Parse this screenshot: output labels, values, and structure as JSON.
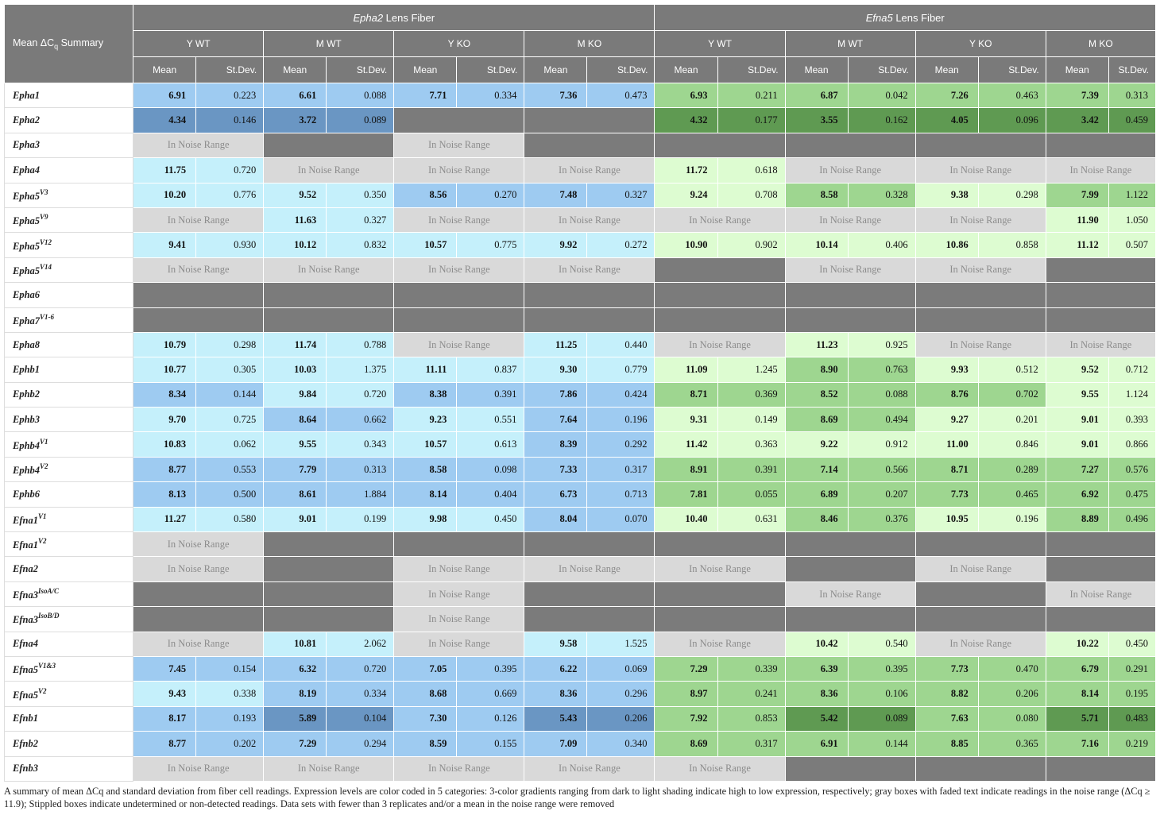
{
  "corner_label": "Mean ΔC",
  "corner_sub": "q",
  "corner_tail": " Summary",
  "groups": [
    {
      "gene": "Epha2",
      "label": " Lens Fiber",
      "theme": "blue"
    },
    {
      "gene": "Efna5",
      "label": " Lens Fiber",
      "theme": "green"
    }
  ],
  "conditions": [
    "Y WT",
    "M WT",
    "Y KO",
    "M KO"
  ],
  "stat_headers": {
    "mean": "Mean",
    "stdev": "St.Dev."
  },
  "noise_text": "In Noise Range",
  "rows": [
    {
      "gene": "Epha1",
      "sup": "",
      "cells": [
        [
          2,
          "6.91",
          "0.223"
        ],
        [
          2,
          "6.61",
          "0.088"
        ],
        [
          2,
          "7.71",
          "0.334"
        ],
        [
          2,
          "7.36",
          "0.473"
        ],
        [
          2,
          "6.93",
          "0.211"
        ],
        [
          2,
          "6.87",
          "0.042"
        ],
        [
          2,
          "7.26",
          "0.463"
        ],
        [
          2,
          "7.39",
          "0.313"
        ]
      ]
    },
    {
      "gene": "Epha2",
      "sup": "",
      "cells": [
        [
          3,
          "4.34",
          "0.146"
        ],
        [
          3,
          "3.72",
          "0.089"
        ],
        [
          "nd"
        ],
        [
          "nd"
        ],
        [
          3,
          "4.32",
          "0.177"
        ],
        [
          3,
          "3.55",
          "0.162"
        ],
        [
          3,
          "4.05",
          "0.096"
        ],
        [
          3,
          "3.42",
          "0.459"
        ]
      ]
    },
    {
      "gene": "Epha3",
      "sup": "",
      "cells": [
        [
          "noise"
        ],
        [
          "nd"
        ],
        [
          "noise"
        ],
        [
          "nd"
        ],
        [
          "nd"
        ],
        [
          "nd"
        ],
        [
          "nd"
        ],
        [
          "nd"
        ]
      ]
    },
    {
      "gene": "Epha4",
      "sup": "",
      "cells": [
        [
          1,
          "11.75",
          "0.720"
        ],
        [
          "noise"
        ],
        [
          "noise"
        ],
        [
          "noise"
        ],
        [
          1,
          "11.72",
          "0.618"
        ],
        [
          "noise"
        ],
        [
          "noise"
        ],
        [
          "noise"
        ]
      ]
    },
    {
      "gene": "Epha5",
      "sup": "V3",
      "cells": [
        [
          1,
          "10.20",
          "0.776"
        ],
        [
          1,
          "9.52",
          "0.350"
        ],
        [
          2,
          "8.56",
          "0.270"
        ],
        [
          2,
          "7.48",
          "0.327"
        ],
        [
          1,
          "9.24",
          "0.708"
        ],
        [
          2,
          "8.58",
          "0.328"
        ],
        [
          1,
          "9.38",
          "0.298"
        ],
        [
          2,
          "7.99",
          "1.122"
        ]
      ]
    },
    {
      "gene": "Epha5",
      "sup": "V9",
      "cells": [
        [
          "noise"
        ],
        [
          1,
          "11.63",
          "0.327"
        ],
        [
          "noise"
        ],
        [
          "noise"
        ],
        [
          "noise"
        ],
        [
          "noise"
        ],
        [
          "noise"
        ],
        [
          1,
          "11.90",
          "1.050"
        ]
      ]
    },
    {
      "gene": "Epha5",
      "sup": "V12",
      "cells": [
        [
          1,
          "9.41",
          "0.930"
        ],
        [
          1,
          "10.12",
          "0.832"
        ],
        [
          1,
          "10.57",
          "0.775"
        ],
        [
          1,
          "9.92",
          "0.272"
        ],
        [
          1,
          "10.90",
          "0.902"
        ],
        [
          1,
          "10.14",
          "0.406"
        ],
        [
          1,
          "10.86",
          "0.858"
        ],
        [
          1,
          "11.12",
          "0.507"
        ]
      ]
    },
    {
      "gene": "Epha5",
      "sup": "V14",
      "cells": [
        [
          "noise"
        ],
        [
          "noise"
        ],
        [
          "noise"
        ],
        [
          "noise"
        ],
        [
          "nd"
        ],
        [
          "noise"
        ],
        [
          "noise"
        ],
        [
          "nd"
        ]
      ]
    },
    {
      "gene": "Epha6",
      "sup": "",
      "cells": [
        [
          "nd"
        ],
        [
          "nd"
        ],
        [
          "nd"
        ],
        [
          "nd"
        ],
        [
          "nd"
        ],
        [
          "nd"
        ],
        [
          "nd"
        ],
        [
          "nd"
        ]
      ]
    },
    {
      "gene": "Epha7",
      "sup": "V1-6",
      "cells": [
        [
          "nd"
        ],
        [
          "nd"
        ],
        [
          "nd"
        ],
        [
          "nd"
        ],
        [
          "nd"
        ],
        [
          "nd"
        ],
        [
          "nd"
        ],
        [
          "nd"
        ]
      ]
    },
    {
      "gene": "Epha8",
      "sup": "",
      "cells": [
        [
          1,
          "10.79",
          "0.298"
        ],
        [
          1,
          "11.74",
          "0.788"
        ],
        [
          "noise"
        ],
        [
          1,
          "11.25",
          "0.440"
        ],
        [
          "noise"
        ],
        [
          1,
          "11.23",
          "0.925"
        ],
        [
          "noise"
        ],
        [
          "noise"
        ]
      ]
    },
    {
      "gene": "Ephb1",
      "sup": "",
      "cells": [
        [
          1,
          "10.77",
          "0.305"
        ],
        [
          1,
          "10.03",
          "1.375"
        ],
        [
          1,
          "11.11",
          "0.837"
        ],
        [
          1,
          "9.30",
          "0.779"
        ],
        [
          1,
          "11.09",
          "1.245"
        ],
        [
          2,
          "8.90",
          "0.763"
        ],
        [
          1,
          "9.93",
          "0.512"
        ],
        [
          1,
          "9.52",
          "0.712"
        ]
      ]
    },
    {
      "gene": "Ephb2",
      "sup": "",
      "cells": [
        [
          2,
          "8.34",
          "0.144"
        ],
        [
          1,
          "9.84",
          "0.720"
        ],
        [
          2,
          "8.38",
          "0.391"
        ],
        [
          2,
          "7.86",
          "0.424"
        ],
        [
          2,
          "8.71",
          "0.369"
        ],
        [
          2,
          "8.52",
          "0.088"
        ],
        [
          2,
          "8.76",
          "0.702"
        ],
        [
          1,
          "9.55",
          "1.124"
        ]
      ]
    },
    {
      "gene": "Ephb3",
      "sup": "",
      "cells": [
        [
          1,
          "9.70",
          "0.725"
        ],
        [
          2,
          "8.64",
          "0.662"
        ],
        [
          1,
          "9.23",
          "0.551"
        ],
        [
          2,
          "7.64",
          "0.196"
        ],
        [
          1,
          "9.31",
          "0.149"
        ],
        [
          2,
          "8.69",
          "0.494"
        ],
        [
          1,
          "9.27",
          "0.201"
        ],
        [
          1,
          "9.01",
          "0.393"
        ]
      ]
    },
    {
      "gene": "Ephb4",
      "sup": "V1",
      "cells": [
        [
          1,
          "10.83",
          "0.062"
        ],
        [
          1,
          "9.55",
          "0.343"
        ],
        [
          1,
          "10.57",
          "0.613"
        ],
        [
          2,
          "8.39",
          "0.292"
        ],
        [
          1,
          "11.42",
          "0.363"
        ],
        [
          1,
          "9.22",
          "0.912"
        ],
        [
          1,
          "11.00",
          "0.846"
        ],
        [
          1,
          "9.01",
          "0.866"
        ]
      ]
    },
    {
      "gene": "Ephb4",
      "sup": "V2",
      "cells": [
        [
          2,
          "8.77",
          "0.553"
        ],
        [
          2,
          "7.79",
          "0.313"
        ],
        [
          2,
          "8.58",
          "0.098"
        ],
        [
          2,
          "7.33",
          "0.317"
        ],
        [
          2,
          "8.91",
          "0.391"
        ],
        [
          2,
          "7.14",
          "0.566"
        ],
        [
          2,
          "8.71",
          "0.289"
        ],
        [
          2,
          "7.27",
          "0.576"
        ]
      ]
    },
    {
      "gene": "Ephb6",
      "sup": "",
      "cells": [
        [
          2,
          "8.13",
          "0.500"
        ],
        [
          2,
          "8.61",
          "1.884"
        ],
        [
          2,
          "8.14",
          "0.404"
        ],
        [
          2,
          "6.73",
          "0.713"
        ],
        [
          2,
          "7.81",
          "0.055"
        ],
        [
          2,
          "6.89",
          "0.207"
        ],
        [
          2,
          "7.73",
          "0.465"
        ],
        [
          2,
          "6.92",
          "0.475"
        ]
      ]
    },
    {
      "gene": "Efna1",
      "sup": "V1",
      "cells": [
        [
          1,
          "11.27",
          "0.580"
        ],
        [
          1,
          "9.01",
          "0.199"
        ],
        [
          1,
          "9.98",
          "0.450"
        ],
        [
          2,
          "8.04",
          "0.070"
        ],
        [
          1,
          "10.40",
          "0.631"
        ],
        [
          2,
          "8.46",
          "0.376"
        ],
        [
          1,
          "10.95",
          "0.196"
        ],
        [
          2,
          "8.89",
          "0.496"
        ]
      ]
    },
    {
      "gene": "Efna1",
      "sup": "V2",
      "cells": [
        [
          "noise"
        ],
        [
          "nd"
        ],
        [
          "nd"
        ],
        [
          "nd"
        ],
        [
          "nd"
        ],
        [
          "nd"
        ],
        [
          "nd"
        ],
        [
          "nd"
        ]
      ]
    },
    {
      "gene": "Efna2",
      "sup": "",
      "cells": [
        [
          "noise"
        ],
        [
          "nd"
        ],
        [
          "noise"
        ],
        [
          "noise"
        ],
        [
          "noise"
        ],
        [
          "nd"
        ],
        [
          "noise"
        ],
        [
          "nd"
        ]
      ]
    },
    {
      "gene": "Efna3",
      "sup": "IsoA/C",
      "cells": [
        [
          "nd"
        ],
        [
          "nd"
        ],
        [
          "noise"
        ],
        [
          "nd"
        ],
        [
          "nd"
        ],
        [
          "noise"
        ],
        [
          "nd"
        ],
        [
          "noise"
        ]
      ]
    },
    {
      "gene": "Efna3",
      "sup": "IsoB/D",
      "cells": [
        [
          "nd"
        ],
        [
          "nd"
        ],
        [
          "noise"
        ],
        [
          "nd"
        ],
        [
          "nd"
        ],
        [
          "nd"
        ],
        [
          "nd"
        ],
        [
          "nd"
        ]
      ]
    },
    {
      "gene": "Efna4",
      "sup": "",
      "cells": [
        [
          "noise"
        ],
        [
          1,
          "10.81",
          "2.062"
        ],
        [
          "noise"
        ],
        [
          1,
          "9.58",
          "1.525"
        ],
        [
          "noise"
        ],
        [
          1,
          "10.42",
          "0.540"
        ],
        [
          "noise"
        ],
        [
          1,
          "10.22",
          "0.450"
        ]
      ]
    },
    {
      "gene": "Efna5",
      "sup": "V1&3",
      "cells": [
        [
          2,
          "7.45",
          "0.154"
        ],
        [
          2,
          "6.32",
          "0.720"
        ],
        [
          2,
          "7.05",
          "0.395"
        ],
        [
          2,
          "6.22",
          "0.069"
        ],
        [
          2,
          "7.29",
          "0.339"
        ],
        [
          2,
          "6.39",
          "0.395"
        ],
        [
          2,
          "7.73",
          "0.470"
        ],
        [
          2,
          "6.79",
          "0.291"
        ]
      ]
    },
    {
      "gene": "Efna5",
      "sup": "V2",
      "cells": [
        [
          1,
          "9.43",
          "0.338"
        ],
        [
          2,
          "8.19",
          "0.334"
        ],
        [
          2,
          "8.68",
          "0.669"
        ],
        [
          2,
          "8.36",
          "0.296"
        ],
        [
          2,
          "8.97",
          "0.241"
        ],
        [
          2,
          "8.36",
          "0.106"
        ],
        [
          2,
          "8.82",
          "0.206"
        ],
        [
          2,
          "8.14",
          "0.195"
        ]
      ]
    },
    {
      "gene": "Efnb1",
      "sup": "",
      "cells": [
        [
          2,
          "8.17",
          "0.193"
        ],
        [
          3,
          "5.89",
          "0.104"
        ],
        [
          2,
          "7.30",
          "0.126"
        ],
        [
          3,
          "5.43",
          "0.206"
        ],
        [
          2,
          "7.92",
          "0.853"
        ],
        [
          3,
          "5.42",
          "0.089"
        ],
        [
          2,
          "7.63",
          "0.080"
        ],
        [
          3,
          "5.71",
          "0.483"
        ]
      ]
    },
    {
      "gene": "Efnb2",
      "sup": "",
      "cells": [
        [
          2,
          "8.77",
          "0.202"
        ],
        [
          2,
          "7.29",
          "0.294"
        ],
        [
          2,
          "8.59",
          "0.155"
        ],
        [
          2,
          "7.09",
          "0.340"
        ],
        [
          2,
          "8.69",
          "0.317"
        ],
        [
          2,
          "6.91",
          "0.144"
        ],
        [
          2,
          "8.85",
          "0.365"
        ],
        [
          2,
          "7.16",
          "0.219"
        ]
      ]
    },
    {
      "gene": "Efnb3",
      "sup": "",
      "cells": [
        [
          "noise"
        ],
        [
          "noise"
        ],
        [
          "noise"
        ],
        [
          "noise"
        ],
        [
          "noise"
        ],
        [
          "nd"
        ],
        [
          "nd"
        ],
        [
          "nd"
        ]
      ]
    }
  ],
  "caption": "A summary of mean ΔCq and standard deviation from fiber cell readings. Expression levels are color coded in 5 categories: 3-color gradients ranging from dark to light shading indicate high to low expression, respectively; gray boxes with faded text indicate readings in the noise range (ΔCq ≥ 11.9); Stippled boxes indicate undetermined or non-detected readings. Data sets with fewer than 3 replicates and/or a mean in the noise range were removed"
}
